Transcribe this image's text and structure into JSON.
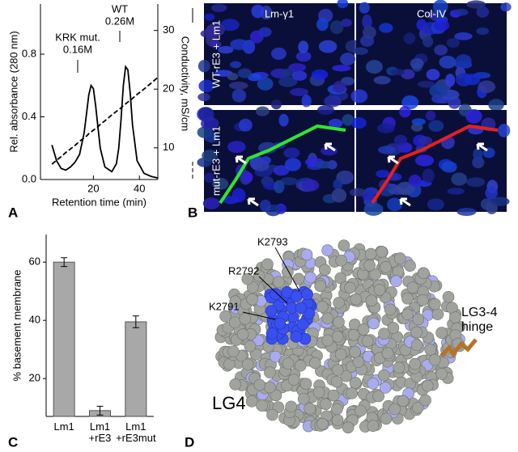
{
  "panels": {
    "a": "A",
    "b": "B",
    "c": "C",
    "d": "D"
  },
  "chart_data": [
    {
      "type": "line",
      "xlabel": "Retention time (min)",
      "ylabel": "Rel. absorbance (280 nm)",
      "y2label": "Conductivity, mS/cm",
      "annotations": [
        "KRK mut.",
        "0.16M",
        "WT",
        "0.26M"
      ],
      "x": [
        2,
        4,
        6,
        8,
        10,
        12,
        14,
        16,
        17,
        18,
        19,
        20,
        21,
        22,
        23,
        25,
        28,
        30,
        31,
        32,
        33,
        34,
        35,
        36,
        37,
        39,
        42,
        45,
        48
      ],
      "series": [
        {
          "color": "#000000",
          "values": [
            0.22,
            0.12,
            0.07,
            0.06,
            0.08,
            0.11,
            0.16,
            0.3,
            0.42,
            0.54,
            0.6,
            0.58,
            0.47,
            0.33,
            0.2,
            0.08,
            0.05,
            0.1,
            0.2,
            0.38,
            0.6,
            0.72,
            0.7,
            0.55,
            0.35,
            0.12,
            0.04,
            0.02,
            0.01
          ]
        },
        {
          "color": "#000000",
          "dashed": true,
          "axis": "y2",
          "values": [
            7.2,
            7.9,
            8.5,
            9.2,
            9.8,
            10.4,
            11.1,
            11.7,
            12.0,
            12.4,
            12.7,
            13.0,
            13.3,
            13.6,
            14.0,
            14.6,
            15.6,
            16.2,
            16.5,
            16.8,
            17.2,
            17.5,
            17.8,
            18.1,
            18.4,
            19.1,
            20.0,
            21.0,
            22.0
          ]
        }
      ],
      "xlim": [
        -3,
        48
      ],
      "xticks": [
        20,
        40
      ],
      "ylim": [
        0,
        1.12
      ],
      "yticks": [
        {
          "value": 0,
          "label": "0.0"
        },
        0.4,
        0.8
      ],
      "y2lim": [
        4.6,
        34.5
      ],
      "y2ticks": [
        10,
        20,
        30
      ]
    },
    {
      "type": "bar",
      "ylabel": "% basement membrane",
      "categories": [
        "Lm1",
        "Lm1\n+rE3",
        "Lm1\n+rE3mut"
      ],
      "values": [
        60,
        9,
        39.5
      ],
      "errors": [
        1.5,
        1.5,
        2
      ],
      "color": "#a8a8a8",
      "ylim": [
        7,
        69.5
      ],
      "yticks": [
        20,
        40,
        60
      ]
    }
  ],
  "micrographs": {
    "columns": [
      "Lm-γ1",
      "Col-IV"
    ],
    "rows": [
      "WT-rE3 + Lm1",
      "mut-rE3 + Lm1"
    ]
  },
  "structure": {
    "title": "LG4",
    "residues": [
      "K2793",
      "R2792",
      "K2791"
    ],
    "hinge": "LG3-4\nhinge"
  }
}
